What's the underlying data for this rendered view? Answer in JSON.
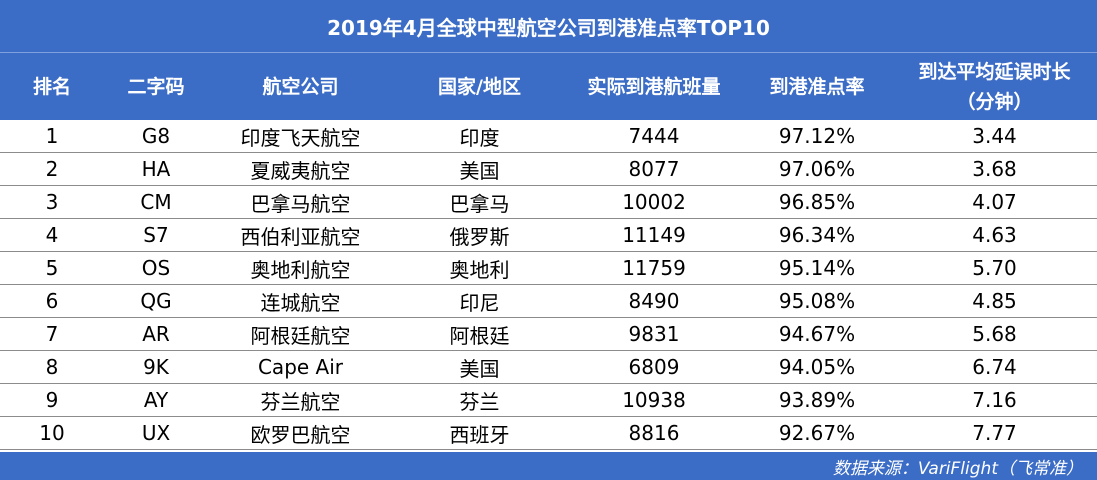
{
  "title": "2019年4月全球中型航空公司到港准点率TOP10",
  "headers": {
    "rank": "排名",
    "code": "二字码",
    "airline": "航空公司",
    "country": "国家/地区",
    "arrivals": "实际到港航班量",
    "ontime": "到港准点率",
    "delay_line1": "到达平均延误时长",
    "delay_line2": "（分钟）"
  },
  "rows": [
    {
      "rank": "1",
      "code": "G8",
      "airline": "印度飞天航空",
      "country": "印度",
      "arrivals": "7444",
      "ontime": "97.12%",
      "delay": "3.44"
    },
    {
      "rank": "2",
      "code": "HA",
      "airline": "夏威夷航空",
      "country": "美国",
      "arrivals": "8077",
      "ontime": "97.06%",
      "delay": "3.68"
    },
    {
      "rank": "3",
      "code": "CM",
      "airline": "巴拿马航空",
      "country": "巴拿马",
      "arrivals": "10002",
      "ontime": "96.85%",
      "delay": "4.07"
    },
    {
      "rank": "4",
      "code": "S7",
      "airline": "西伯利亚航空",
      "country": "俄罗斯",
      "arrivals": "11149",
      "ontime": "96.34%",
      "delay": "4.63"
    },
    {
      "rank": "5",
      "code": "OS",
      "airline": "奥地利航空",
      "country": "奥地利",
      "arrivals": "11759",
      "ontime": "95.14%",
      "delay": "5.70"
    },
    {
      "rank": "6",
      "code": "QG",
      "airline": "连城航空",
      "country": "印尼",
      "arrivals": "8490",
      "ontime": "95.08%",
      "delay": "4.85"
    },
    {
      "rank": "7",
      "code": "AR",
      "airline": "阿根廷航空",
      "country": "阿根廷",
      "arrivals": "9831",
      "ontime": "94.67%",
      "delay": "5.68"
    },
    {
      "rank": "8",
      "code": "9K",
      "airline": "Cape Air",
      "country": "美国",
      "arrivals": "6809",
      "ontime": "94.05%",
      "delay": "6.74"
    },
    {
      "rank": "9",
      "code": "AY",
      "airline": "芬兰航空",
      "country": "芬兰",
      "arrivals": "10938",
      "ontime": "93.89%",
      "delay": "7.16"
    },
    {
      "rank": "10",
      "code": "UX",
      "airline": "欧罗巴航空",
      "country": "西班牙",
      "arrivals": "8816",
      "ontime": "92.67%",
      "delay": "7.77"
    }
  ],
  "footer": "数据来源：VariFlight（飞常准）",
  "colors": {
    "header_bg": "#3b6cc6",
    "header_text": "#ffffff",
    "row_border": "#8c8c8c"
  }
}
